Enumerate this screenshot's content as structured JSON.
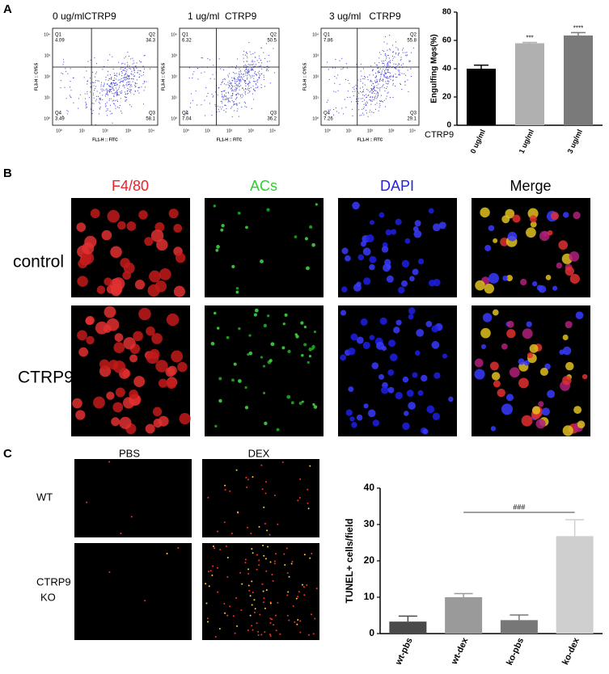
{
  "panel_labels": [
    "A",
    "B",
    "C"
  ],
  "flow": {
    "y_axis_label": "FL3-H :: CY5.5",
    "x_axis_label": "FL1-H :: FITC",
    "ticks": [
      "10⁰",
      "10¹",
      "10²",
      "10³",
      "10⁴"
    ],
    "plots": [
      {
        "title": "0 ug/mlCTRP9",
        "quadrants": [
          {
            "name": "Q1",
            "value": "4.09"
          },
          {
            "name": "Q2",
            "value": "34.3"
          },
          {
            "name": "Q3",
            "value": "58.1"
          },
          {
            "name": "Q4",
            "value": "3.49"
          }
        ]
      },
      {
        "title": "1 ug/ml  CTRP9",
        "quadrants": [
          {
            "name": "Q1",
            "value": "6.32"
          },
          {
            "name": "Q2",
            "value": "50.5"
          },
          {
            "name": "Q3",
            "value": "36.2"
          },
          {
            "name": "Q4",
            "value": "7.04"
          }
        ]
      },
      {
        "title": "3 ug/ml   CTRP9",
        "quadrants": [
          {
            "name": "Q1",
            "value": "7.86"
          },
          {
            "name": "Q2",
            "value": "55.8"
          },
          {
            "name": "Q3",
            "value": "29.1"
          },
          {
            "name": "Q4",
            "value": "7.26"
          }
        ]
      }
    ]
  },
  "microscopy": {
    "columns": [
      "F4/80",
      "ACs",
      "DAPI",
      "Merge"
    ],
    "rows": [
      "control",
      "CTRP9"
    ]
  },
  "tunel_images": {
    "columns": [
      "PBS",
      "DEX"
    ],
    "rows": [
      [
        "WT"
      ],
      [
        "CTRP9",
        "KO"
      ]
    ]
  },
  "chart_data": [
    {
      "type": "bar",
      "y_label": "Engulfing Mφs(%)",
      "x_label": "CTRP9",
      "categories": [
        "0 ug/ml",
        "1 ug/ml",
        "3 ug/ml"
      ],
      "values": [
        40,
        58,
        63.5
      ],
      "errors": [
        2.5,
        0.6,
        2
      ],
      "colors": [
        "#000000",
        "#b0b0b0",
        "#7a7a7a"
      ],
      "annotations": [
        null,
        "***",
        "****"
      ],
      "ylim": [
        0,
        80
      ],
      "yticks": [
        0,
        20,
        40,
        60,
        80
      ]
    },
    {
      "type": "bar",
      "y_label": "TUNEL+ cells/field",
      "categories": [
        "wt-pbs",
        "wt-dex",
        "ko-pbs",
        "ko-dex"
      ],
      "values": [
        3.3,
        10,
        3.7,
        26.8
      ],
      "errors": [
        1.5,
        1,
        1.4,
        4.5
      ],
      "colors": [
        "#4a4a4a",
        "#9a9a9a",
        "#777777",
        "#cfcfcf"
      ],
      "bracket": {
        "label": "###",
        "from": 1,
        "to": 3
      },
      "ylim": [
        0,
        40
      ],
      "yticks": [
        0,
        10,
        20,
        30,
        40
      ]
    }
  ]
}
